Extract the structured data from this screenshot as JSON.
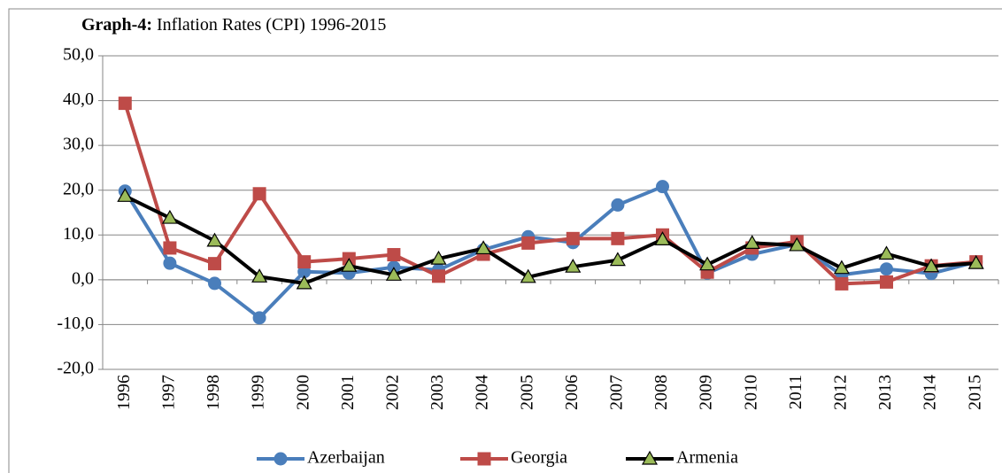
{
  "chart_data": {
    "type": "line",
    "title_prefix": "Graph-4:",
    "title": "Inflation Rates (CPI) 1996-2015",
    "categories": [
      "1996",
      "1997",
      "1998",
      "1999",
      "2000",
      "2001",
      "2002",
      "2003",
      "2004",
      "2005",
      "2006",
      "2007",
      "2008",
      "2009",
      "2010",
      "2011",
      "2012",
      "2013",
      "2014",
      "2015"
    ],
    "series": [
      {
        "name": "Azerbaijan",
        "color": "#4a7ebb",
        "marker": "circle",
        "values": [
          19.8,
          3.7,
          -0.8,
          -8.5,
          1.8,
          1.5,
          2.8,
          2.2,
          6.7,
          9.6,
          8.3,
          16.7,
          20.8,
          1.5,
          5.7,
          7.9,
          1.1,
          2.4,
          1.4,
          4.0
        ]
      },
      {
        "name": "Georgia",
        "color": "#be4b48",
        "marker": "square",
        "values": [
          39.4,
          7.1,
          3.6,
          19.2,
          4.0,
          4.7,
          5.6,
          0.8,
          5.7,
          8.2,
          9.2,
          9.2,
          10.0,
          1.7,
          7.1,
          8.5,
          -0.9,
          -0.5,
          3.1,
          4.0
        ]
      },
      {
        "name": "Armenia",
        "color": "#000000",
        "marker": "triangle",
        "marker_fill": "#9bbb59",
        "values": [
          18.7,
          13.8,
          8.7,
          0.7,
          -0.8,
          3.1,
          1.1,
          4.7,
          7.0,
          0.6,
          2.9,
          4.4,
          9.0,
          3.4,
          8.2,
          7.7,
          2.6,
          5.8,
          3.0,
          3.7
        ]
      }
    ],
    "ylim": [
      -20,
      50
    ],
    "yticks": [
      {
        "value": -20,
        "label": "-20,0"
      },
      {
        "value": -10,
        "label": "-10,0"
      },
      {
        "value": 0,
        "label": "0,0"
      },
      {
        "value": 10,
        "label": "10,0"
      },
      {
        "value": 20,
        "label": "20,0"
      },
      {
        "value": 30,
        "label": "30,0"
      },
      {
        "value": 40,
        "label": "40,0"
      },
      {
        "value": 50,
        "label": "50,0"
      }
    ],
    "grid": true,
    "legend": "bottom"
  }
}
